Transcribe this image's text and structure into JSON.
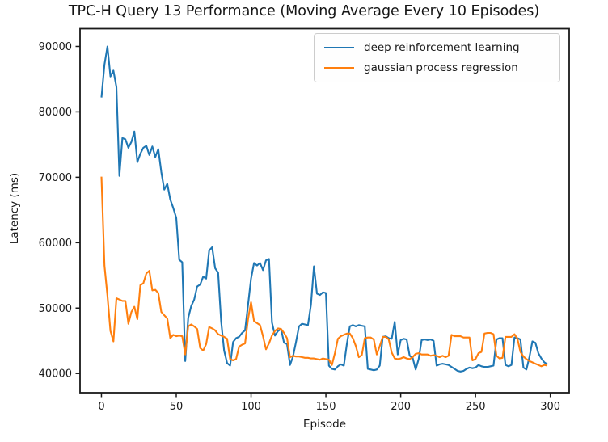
{
  "chart_data": {
    "type": "line",
    "title": "TPC-H Query 13 Performance (Moving Average Every 10 Episodes)",
    "xlabel": "Episode",
    "ylabel": "Latency (ms)",
    "xlim": [
      -14.3,
      312.6
    ],
    "ylim": [
      37060,
      92715
    ],
    "xticks": [
      0,
      50,
      100,
      150,
      200,
      250,
      300
    ],
    "yticks": [
      40000,
      50000,
      60000,
      70000,
      80000,
      90000
    ],
    "grid": false,
    "legend_position": "upper right",
    "x": [
      0,
      2,
      4,
      6,
      8,
      10,
      12,
      14,
      16,
      18,
      20,
      22,
      24,
      26,
      28,
      30,
      32,
      34,
      36,
      38,
      40,
      42,
      44,
      46,
      48,
      50,
      52,
      54,
      56,
      58,
      60,
      62,
      64,
      66,
      68,
      70,
      72,
      74,
      76,
      78,
      80,
      82,
      84,
      86,
      88,
      90,
      92,
      94,
      96,
      98,
      100,
      102,
      104,
      106,
      108,
      110,
      112,
      114,
      116,
      118,
      120,
      122,
      124,
      126,
      128,
      130,
      132,
      134,
      136,
      138,
      140,
      142,
      144,
      146,
      148,
      150,
      152,
      154,
      156,
      158,
      160,
      162,
      164,
      166,
      168,
      170,
      172,
      174,
      176,
      178,
      180,
      182,
      184,
      186,
      188,
      190,
      192,
      194,
      196,
      198,
      200,
      202,
      204,
      206,
      208,
      210,
      212,
      214,
      216,
      218,
      220,
      222,
      224,
      226,
      228,
      230,
      232,
      234,
      236,
      238,
      240,
      242,
      244,
      246,
      248,
      250,
      252,
      254,
      256,
      258,
      260,
      262,
      264,
      266,
      268,
      270,
      272,
      274,
      276,
      278,
      280,
      282,
      284,
      286,
      288,
      290,
      292,
      294,
      296,
      298
    ],
    "series": [
      {
        "name": "deep reinforcement learning",
        "color": "#1f77b4",
        "values": [
          82200,
          87200,
          90000,
          85400,
          86300,
          83800,
          70200,
          76000,
          75800,
          74500,
          75400,
          77000,
          72300,
          73600,
          74500,
          74800,
          73400,
          74700,
          73100,
          74300,
          70800,
          68100,
          69000,
          66600,
          65300,
          63800,
          57400,
          57000,
          41900,
          48500,
          50300,
          51300,
          53300,
          53600,
          54800,
          54500,
          58800,
          59300,
          56100,
          55400,
          48000,
          43500,
          41600,
          41200,
          44800,
          45400,
          45600,
          46200,
          46600,
          50500,
          54500,
          56900,
          56500,
          56900,
          55800,
          57300,
          57500,
          47800,
          45800,
          46500,
          46800,
          44700,
          44500,
          41300,
          42600,
          44800,
          47200,
          47600,
          47500,
          47400,
          50500,
          56400,
          52200,
          52000,
          52400,
          52300,
          41200,
          40700,
          40600,
          41100,
          41400,
          41200,
          44500,
          47200,
          47400,
          47200,
          47400,
          47300,
          47200,
          40700,
          40600,
          40500,
          40600,
          41200,
          45600,
          45700,
          45400,
          45300,
          47900,
          42900,
          45100,
          45300,
          45200,
          42700,
          42400,
          40600,
          42200,
          45100,
          45200,
          45100,
          45200,
          45000,
          41200,
          41400,
          41500,
          41400,
          41300,
          41000,
          40700,
          40400,
          40300,
          40400,
          40700,
          40900,
          40800,
          40900,
          41300,
          41100,
          41000,
          41000,
          41100,
          41200,
          45200,
          45400,
          45400,
          41300,
          41100,
          41300,
          45500,
          45400,
          45200,
          40900,
          40600,
          42500,
          44900,
          44700,
          43100,
          42300,
          41700,
          41400
        ]
      },
      {
        "name": "gaussian process regression",
        "color": "#ff7f0e",
        "values": [
          70100,
          56500,
          51900,
          46500,
          44900,
          51500,
          51300,
          51100,
          51100,
          47600,
          49400,
          50200,
          48300,
          53500,
          53800,
          55300,
          55700,
          52700,
          52800,
          52300,
          49400,
          48900,
          48400,
          45400,
          45900,
          45700,
          45800,
          45700,
          42900,
          47200,
          47500,
          47200,
          46800,
          43900,
          43500,
          44500,
          47100,
          46900,
          46600,
          46000,
          45800,
          45600,
          45300,
          42200,
          42000,
          42200,
          44100,
          44400,
          44600,
          48300,
          50900,
          48000,
          47700,
          47400,
          45700,
          43700,
          44600,
          45800,
          46500,
          46900,
          46800,
          46200,
          45400,
          42500,
          42700,
          42600,
          42600,
          42500,
          42400,
          42400,
          42300,
          42300,
          42200,
          42100,
          42300,
          42200,
          42100,
          41300,
          43100,
          45300,
          45700,
          45900,
          46100,
          46100,
          45400,
          44200,
          42500,
          42800,
          45400,
          45500,
          45500,
          45200,
          42900,
          44200,
          45600,
          45600,
          45200,
          43200,
          42300,
          42200,
          42300,
          42500,
          42300,
          42200,
          42500,
          43000,
          43100,
          42900,
          42900,
          42900,
          42700,
          42800,
          42700,
          42500,
          42700,
          42500,
          42700,
          45900,
          45700,
          45700,
          45700,
          45500,
          45500,
          45500,
          42000,
          42200,
          43100,
          43300,
          46100,
          46200,
          46200,
          46000,
          42700,
          42300,
          42400,
          45600,
          45600,
          45600,
          46000,
          45300,
          43300,
          42600,
          42200,
          41900,
          41700,
          41500,
          41300,
          41100,
          41300,
          41200
        ]
      }
    ]
  }
}
